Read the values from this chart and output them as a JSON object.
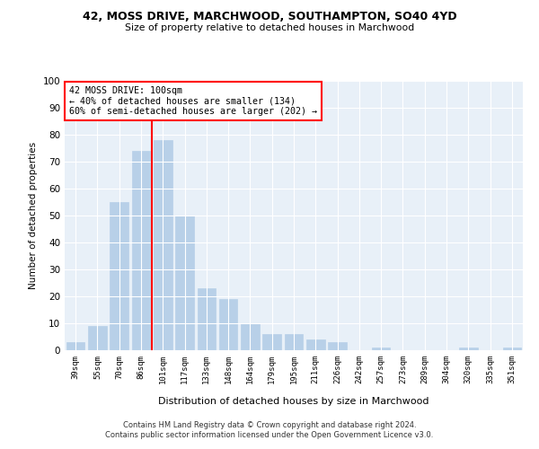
{
  "title1": "42, MOSS DRIVE, MARCHWOOD, SOUTHAMPTON, SO40 4YD",
  "title2": "Size of property relative to detached houses in Marchwood",
  "xlabel": "Distribution of detached houses by size in Marchwood",
  "ylabel": "Number of detached properties",
  "categories": [
    "39sqm",
    "55sqm",
    "70sqm",
    "86sqm",
    "101sqm",
    "117sqm",
    "133sqm",
    "148sqm",
    "164sqm",
    "179sqm",
    "195sqm",
    "211sqm",
    "226sqm",
    "242sqm",
    "257sqm",
    "273sqm",
    "289sqm",
    "304sqm",
    "320sqm",
    "335sqm",
    "351sqm"
  ],
  "values": [
    3,
    9,
    55,
    74,
    78,
    50,
    23,
    19,
    10,
    6,
    6,
    4,
    3,
    0,
    1,
    0,
    0,
    0,
    1,
    0,
    1
  ],
  "bar_color": "#b8d0e8",
  "bar_edgecolor": "#b8d0e8",
  "vline_color": "red",
  "vline_x_index": 3.5,
  "annotation_text": "42 MOSS DRIVE: 100sqm\n← 40% of detached houses are smaller (134)\n60% of semi-detached houses are larger (202) →",
  "annotation_box_color": "white",
  "annotation_box_edgecolor": "red",
  "ylim": [
    0,
    100
  ],
  "yticks": [
    0,
    10,
    20,
    30,
    40,
    50,
    60,
    70,
    80,
    90,
    100
  ],
  "background_color": "#e8f0f8",
  "grid_color": "white",
  "footer1": "Contains HM Land Registry data © Crown copyright and database right 2024.",
  "footer2": "Contains public sector information licensed under the Open Government Licence v3.0."
}
